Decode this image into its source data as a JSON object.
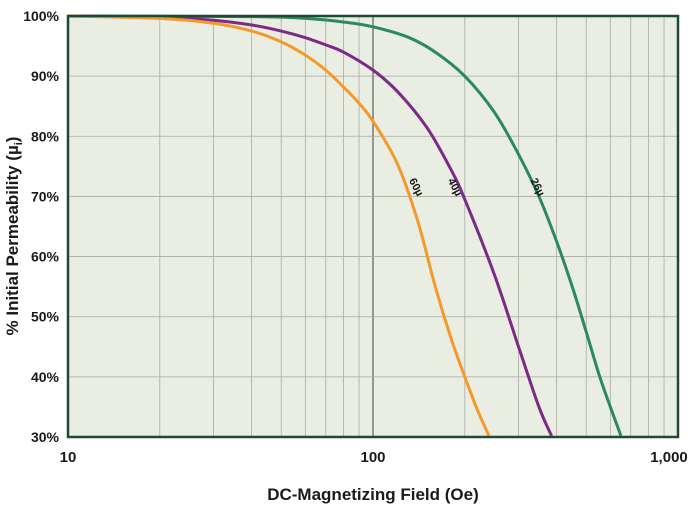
{
  "chart_data": {
    "type": "line",
    "title": "",
    "xlabel": "DC-Magnetizing Field (Oe)",
    "ylabel_main": "% Initial Permeability (µ",
    "ylabel_sub": "i",
    "ylabel_close": ")",
    "x_scale": "log",
    "xlim": [
      10,
      1000
    ],
    "ylim": [
      30,
      100
    ],
    "grid": true,
    "x_ticks": [
      {
        "value": 10,
        "label": "10"
      },
      {
        "value": 100,
        "label": "100"
      },
      {
        "value": 1000,
        "label": "1,000"
      }
    ],
    "y_ticks": [
      {
        "value": 30,
        "label": "30%"
      },
      {
        "value": 40,
        "label": "40%"
      },
      {
        "value": 50,
        "label": "50%"
      },
      {
        "value": 60,
        "label": "60%"
      },
      {
        "value": 70,
        "label": "70%"
      },
      {
        "value": 80,
        "label": "80%"
      },
      {
        "value": 90,
        "label": "90%"
      },
      {
        "value": 100,
        "label": "100%"
      }
    ],
    "series": [
      {
        "name": "26µ",
        "color": "#2a8a5e",
        "label_at": {
          "x": 345,
          "y": 71.5
        },
        "x": [
          10,
          40,
          60,
          80,
          100,
          130,
          160,
          200,
          250,
          300,
          350,
          400,
          450,
          500,
          550,
          600,
          650
        ],
        "y": [
          100,
          99.9,
          99.6,
          99.0,
          98.2,
          96.5,
          94.0,
          90.0,
          84.0,
          77.0,
          70.0,
          62.5,
          55.0,
          47.5,
          40.5,
          35.0,
          30.2
        ]
      },
      {
        "name": "40µ",
        "color": "#7b2a86",
        "label_at": {
          "x": 185,
          "y": 71.5
        },
        "x": [
          10,
          20,
          30,
          40,
          50,
          60,
          70,
          80,
          100,
          120,
          150,
          180,
          200,
          250,
          300,
          350,
          385
        ],
        "y": [
          100,
          99.8,
          99.3,
          98.5,
          97.5,
          96.4,
          95.2,
          94.0,
          91.0,
          87.5,
          81.5,
          74.5,
          69.5,
          57.0,
          45.0,
          35.0,
          30.2
        ]
      },
      {
        "name": "60µ",
        "color": "#f39a2b",
        "label_at": {
          "x": 138,
          "y": 71.5
        },
        "x": [
          10,
          20,
          30,
          40,
          50,
          60,
          70,
          80,
          90,
          100,
          120,
          140,
          160,
          180,
          200,
          220,
          240
        ],
        "y": [
          100,
          99.6,
          98.8,
          97.5,
          95.7,
          93.5,
          91.0,
          88.2,
          85.5,
          82.5,
          75.5,
          66.0,
          55.0,
          46.5,
          40.0,
          34.5,
          30.2
        ]
      }
    ]
  }
}
